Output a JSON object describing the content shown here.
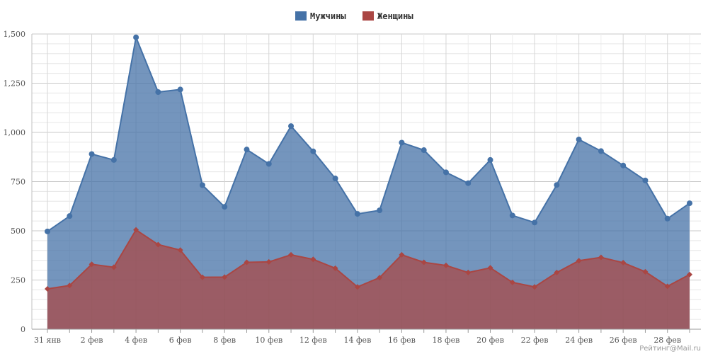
{
  "chart_data": {
    "type": "area",
    "title": "",
    "xlabel": "",
    "ylabel": "",
    "ylim": [
      0,
      1500
    ],
    "yticks": [
      0,
      250,
      500,
      750,
      1000,
      1250,
      1500
    ],
    "ytick_labels": [
      "0",
      "250",
      "500",
      "750",
      "1,000",
      "1,250",
      "1,500"
    ],
    "categories": [
      "31 янв",
      "1 фев",
      "2 фев",
      "3 фев",
      "4 фев",
      "5 фев",
      "6 фев",
      "7 фев",
      "8 фев",
      "9 фев",
      "10 фев",
      "11 фев",
      "12 фев",
      "13 фев",
      "14 фев",
      "15 фев",
      "16 фев",
      "17 фев",
      "18 фев",
      "19 фев",
      "20 фев",
      "21 фев",
      "22 фев",
      "23 фев",
      "24 фев",
      "25 фев",
      "26 фев",
      "27 фев",
      "28 фев",
      "29 фев"
    ],
    "xtick_labels": [
      "31 янв",
      "",
      "2 фев",
      "",
      "4 фев",
      "",
      "6 фев",
      "",
      "8 фев",
      "",
      "10 фев",
      "",
      "12 фев",
      "",
      "14 фев",
      "",
      "16 фев",
      "",
      "18 фев",
      "",
      "20 фев",
      "",
      "22 фев",
      "",
      "24 фев",
      "",
      "26 фев",
      "",
      "28 фев",
      ""
    ],
    "grid": true,
    "legend_position": "top-center",
    "series": [
      {
        "name": "Мужчины",
        "color": "#4572a7",
        "marker": "circle",
        "values": [
          497,
          575,
          890,
          860,
          1483,
          1205,
          1218,
          732,
          622,
          913,
          840,
          1032,
          904,
          766,
          586,
          604,
          948,
          910,
          797,
          742,
          860,
          578,
          542,
          733,
          964,
          905,
          832,
          756,
          562,
          640
        ]
      },
      {
        "name": "Женщины",
        "color": "#aa4643",
        "marker": "diamond",
        "values": [
          205,
          222,
          330,
          315,
          505,
          430,
          402,
          264,
          265,
          340,
          342,
          378,
          355,
          310,
          215,
          262,
          378,
          340,
          324,
          288,
          312,
          238,
          215,
          288,
          348,
          365,
          338,
          292,
          218,
          278
        ]
      }
    ]
  },
  "watermark": "Рейтинг@Mail.ru"
}
